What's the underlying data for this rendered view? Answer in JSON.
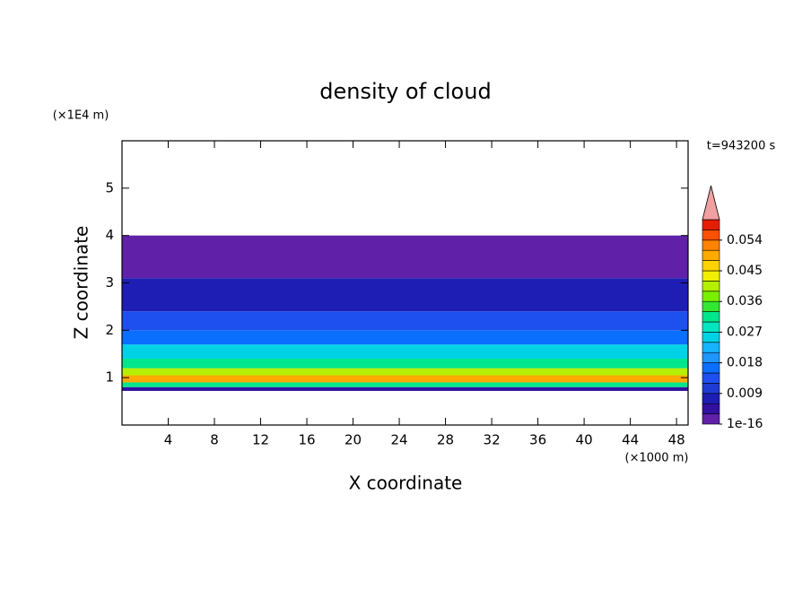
{
  "chart_data": {
    "type": "contour-profile",
    "title": "density of cloud",
    "x_label": "X coordinate",
    "y_label": "Z coordinate",
    "x_unit": "(×1000 m)",
    "y_unit": "(×1E4 m)",
    "time_label": "t=943200 s",
    "xlim": [
      0,
      49
    ],
    "xticks": [
      4,
      8,
      12,
      16,
      20,
      24,
      28,
      32,
      36,
      40,
      44,
      48
    ],
    "ylim": [
      0,
      6
    ],
    "yticks": [
      1,
      2,
      3,
      4,
      5
    ],
    "z_bounds": [
      0.72,
      0.8,
      0.9,
      1.05,
      1.2,
      1.4,
      1.7,
      2.0,
      2.4,
      3.1,
      4.0
    ],
    "values": [
      0.003,
      0.03,
      0.05,
      0.04,
      0.03,
      0.024,
      0.016,
      0.012,
      0.006,
      0.001
    ],
    "colorbar_lim": [
      0,
      0.06
    ],
    "colorbar_ticks": [
      1e-16,
      0.009,
      0.018,
      0.027,
      0.036,
      0.045,
      0.054
    ],
    "colors": [
      "#6020a8",
      "#3210a0",
      "#1e1eb4",
      "#1e3cd2",
      "#1e50f0",
      "#0a6eff",
      "#1e96ff",
      "#14b4ff",
      "#00d2e6",
      "#00e6c0",
      "#00e68c",
      "#32e632",
      "#78f000",
      "#b4f000",
      "#f0f000",
      "#ffd200",
      "#ffaa00",
      "#ff8200",
      "#ff5000",
      "#e61e00"
    ],
    "over_color": "#f0a0a0"
  }
}
